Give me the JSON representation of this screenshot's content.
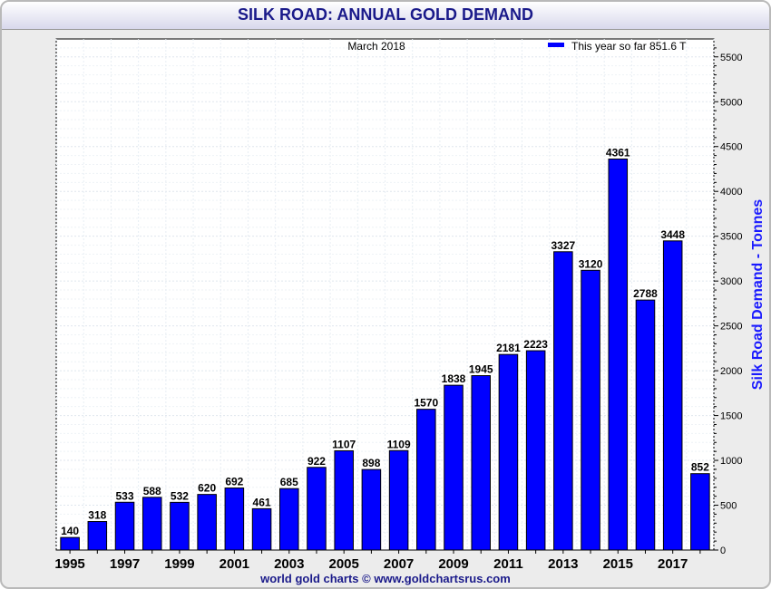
{
  "title": "SILK ROAD: ANNUAL GOLD DEMAND",
  "subtitle": "March 2018",
  "legend_label": "This year so far 851.6 T",
  "footer": "world gold charts © www.goldchartsrus.com",
  "colors": {
    "bar": "#0000ff",
    "title": "#1a1a8a",
    "axis_label": "#1a1aff"
  },
  "chart_data": {
    "type": "bar",
    "title": "SILK ROAD: ANNUAL GOLD DEMAND",
    "subtitle": "March 2018",
    "ylabel": "Silk Road Demand - Tonnes",
    "xlabel": "",
    "ylim": [
      0,
      5700
    ],
    "y_ticks": [
      0,
      500,
      1000,
      1500,
      2000,
      2500,
      3000,
      3500,
      4000,
      4500,
      5000,
      5500
    ],
    "y_axis_side": "right",
    "grid": true,
    "legend_position": "top-right",
    "categories": [
      "1995",
      "1996",
      "1997",
      "1998",
      "1999",
      "2000",
      "2001",
      "2002",
      "2003",
      "2004",
      "2005",
      "2006",
      "2007",
      "2008",
      "2009",
      "2010",
      "2011",
      "2012",
      "2013",
      "2014",
      "2015",
      "2016",
      "2017",
      "2018"
    ],
    "x_tick_labels": [
      "1995",
      "1997",
      "1999",
      "2001",
      "2003",
      "2005",
      "2007",
      "2009",
      "2011",
      "2013",
      "2015",
      "2017"
    ],
    "series": [
      {
        "name": "This year so far 851.6 T",
        "values": [
          140,
          318,
          533,
          588,
          532,
          620,
          692,
          461,
          685,
          922,
          1107,
          898,
          1109,
          1570,
          1838,
          1945,
          2181,
          2223,
          3327,
          3120,
          4361,
          2788,
          3448,
          852
        ]
      }
    ],
    "data_labels": [
      "140",
      "318",
      "533",
      "588",
      "532",
      "620",
      "692",
      "461",
      "685",
      "922",
      "1107",
      "898",
      "1109",
      "1570",
      "1838",
      "1945",
      "2181",
      "2223",
      "3327",
      "3120",
      "4361",
      "2788",
      "3448",
      "852"
    ]
  }
}
